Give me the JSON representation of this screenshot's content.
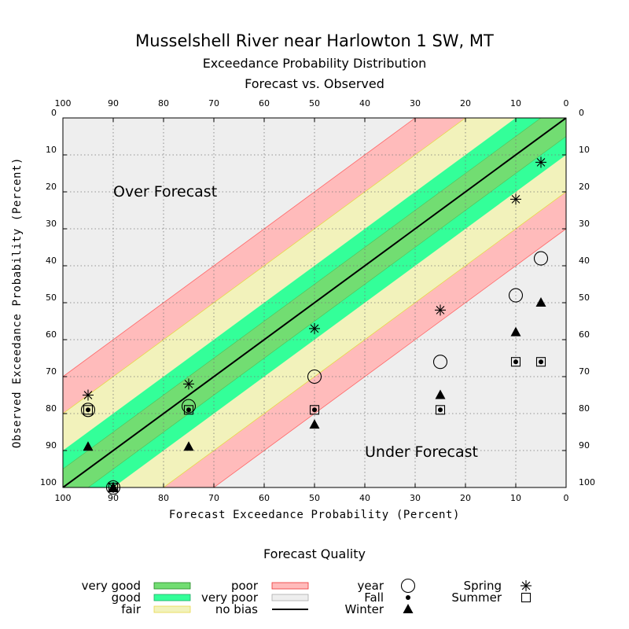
{
  "title": "Musselshell River near Harlowton 1 SW, MT",
  "subtitle1": "Exceedance Probability Distribution",
  "subtitle2": "Forecast vs. Observed",
  "xlabel": "Forecast Exceedance Probability (Percent)",
  "ylabel": "Observed Exceedance Probability (Percent)",
  "annotations": {
    "over": "Over Forecast",
    "under": "Under Forecast"
  },
  "legend": {
    "title": "Forecast Quality",
    "bands": [
      {
        "label": "very good",
        "color": "#72dd72"
      },
      {
        "label": "good",
        "color": "#33ff99"
      },
      {
        "label": "fair",
        "color": "#f2f2bb"
      },
      {
        "label": "poor",
        "color": "#ffbbbb"
      },
      {
        "label": "very poor",
        "color": "#eeeeee"
      },
      {
        "label": "no bias",
        "color": "#000000"
      }
    ],
    "markers": [
      {
        "label": "year",
        "symbol": "circle"
      },
      {
        "label": "Fall",
        "symbol": "dot"
      },
      {
        "label": "Winter",
        "symbol": "triangle"
      },
      {
        "label": "Spring",
        "symbol": "asterisk"
      },
      {
        "label": "Summer",
        "symbol": "square"
      }
    ]
  },
  "colors": {
    "very_good": "#72dd72",
    "good": "#33ff99",
    "fair": "#f2f2bb",
    "poor": "#ffbbbb",
    "very_poor": "#eeeeee",
    "poor_edge": "#ff6666",
    "fair_edge": "#e8d84a"
  },
  "chart_data": {
    "type": "scatter",
    "title": "Musselshell River near Harlowton 1 SW, MT",
    "xlabel": "Forecast Exceedance Probability (Percent)",
    "ylabel": "Observed Exceedance Probability (Percent)",
    "xlim": [
      100,
      0
    ],
    "ylim": [
      100,
      0
    ],
    "xticks": [
      100,
      90,
      80,
      70,
      60,
      50,
      40,
      30,
      20,
      10,
      0
    ],
    "yticks": [
      0,
      10,
      20,
      30,
      40,
      50,
      60,
      70,
      80,
      90,
      100
    ],
    "grid": true,
    "bands": [
      {
        "name": "very good",
        "halfwidth": 5
      },
      {
        "name": "good",
        "halfwidth": 10
      },
      {
        "name": "fair",
        "halfwidth": 20
      },
      {
        "name": "poor",
        "halfwidth": 30
      }
    ],
    "series": [
      {
        "name": "year",
        "symbol": "circle",
        "points": [
          [
            95,
            79
          ],
          [
            90,
            100
          ],
          [
            75,
            78
          ],
          [
            50,
            70
          ],
          [
            25,
            66
          ],
          [
            10,
            48
          ],
          [
            5,
            38
          ]
        ]
      },
      {
        "name": "Fall",
        "symbol": "dot",
        "points": [
          [
            95,
            79
          ],
          [
            90,
            100
          ],
          [
            75,
            79
          ],
          [
            50,
            79
          ],
          [
            25,
            79
          ],
          [
            10,
            66
          ],
          [
            5,
            66
          ]
        ]
      },
      {
        "name": "Winter",
        "symbol": "triangle",
        "points": [
          [
            95,
            89
          ],
          [
            90,
            100
          ],
          [
            75,
            89
          ],
          [
            50,
            83
          ],
          [
            25,
            75
          ],
          [
            10,
            58
          ],
          [
            5,
            50
          ]
        ]
      },
      {
        "name": "Spring",
        "symbol": "asterisk",
        "points": [
          [
            95,
            75
          ],
          [
            90,
            100
          ],
          [
            75,
            72
          ],
          [
            50,
            57
          ],
          [
            25,
            52
          ],
          [
            10,
            22
          ],
          [
            5,
            12
          ]
        ]
      },
      {
        "name": "Summer",
        "symbol": "square",
        "points": [
          [
            95,
            79
          ],
          [
            90,
            100
          ],
          [
            75,
            79
          ],
          [
            50,
            79
          ],
          [
            25,
            79
          ],
          [
            10,
            66
          ],
          [
            5,
            66
          ]
        ]
      }
    ]
  }
}
